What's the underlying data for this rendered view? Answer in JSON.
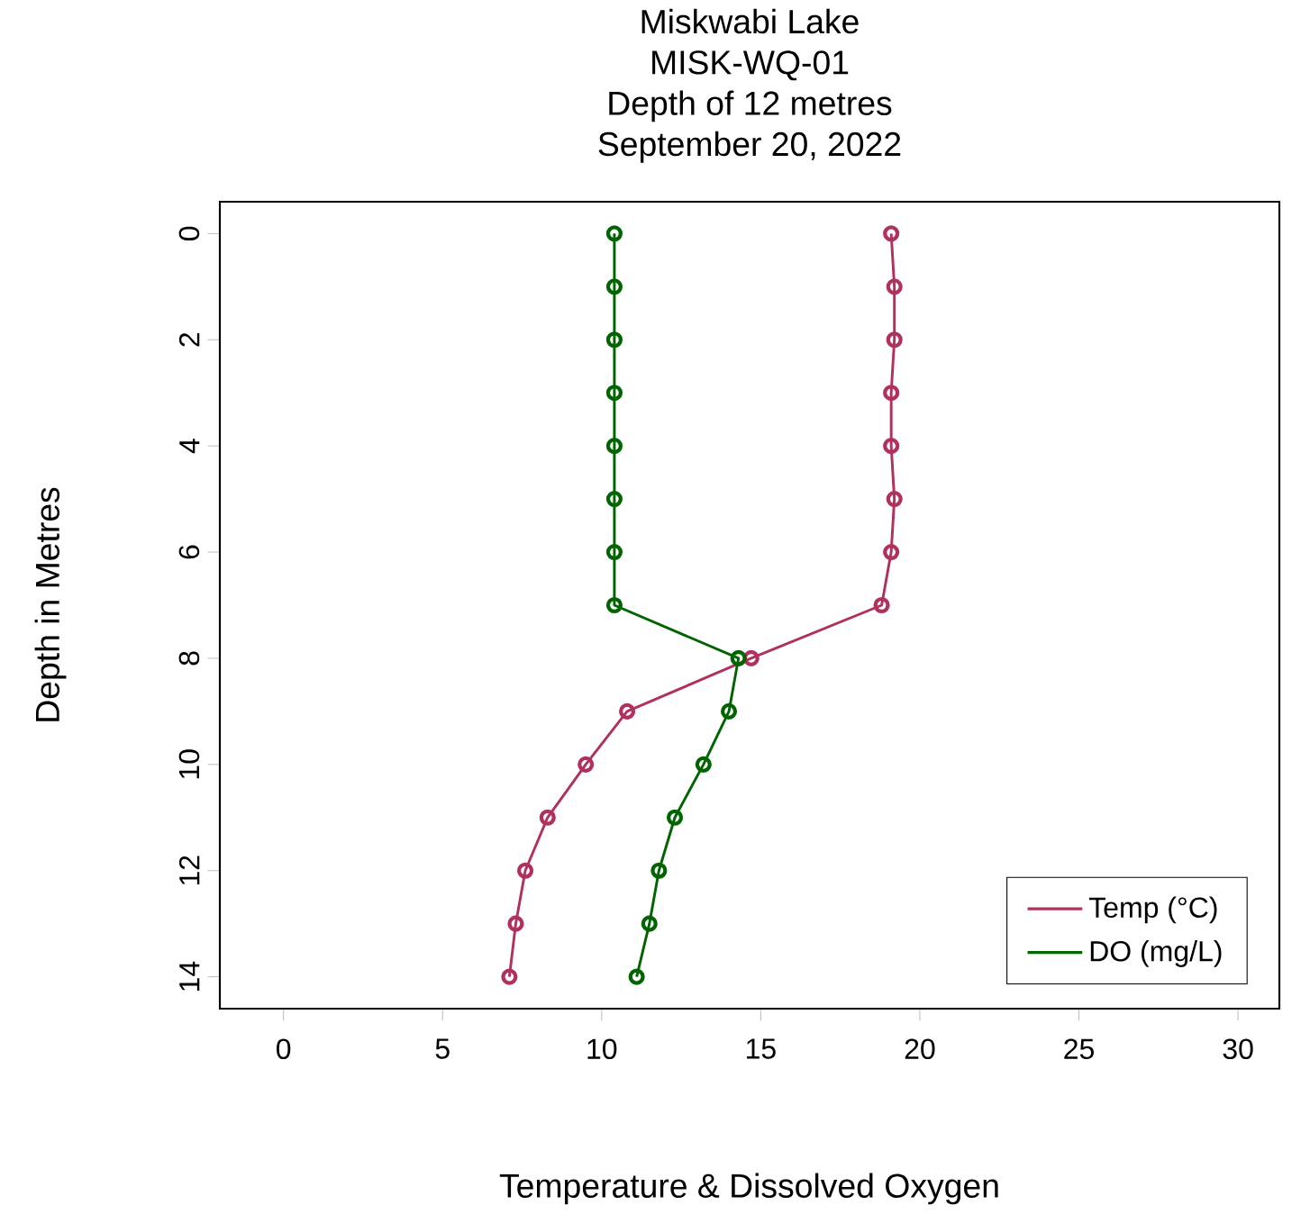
{
  "chart_data": {
    "type": "line",
    "title": "Miskwabi Lake\nMISK-WQ-01\nDepth of 12 metres\nSeptember 20, 2022",
    "xlabel": "Temperature & Dissolved Oxygen",
    "ylabel": "Depth in Metres",
    "series": [
      {
        "name": "Temp (°C)",
        "color": "#b03060",
        "x": [
          19.1,
          19.2,
          19.2,
          19.1,
          19.1,
          19.2,
          19.1,
          18.8,
          14.7,
          10.8,
          9.5,
          8.3,
          7.6,
          7.3,
          7.1
        ],
        "values": [
          0,
          1,
          2,
          3,
          4,
          5,
          6,
          7,
          8,
          9,
          10,
          11,
          12,
          13,
          14
        ]
      },
      {
        "name": "DO (mg/L)",
        "color": "#006400",
        "x": [
          10.4,
          10.4,
          10.4,
          10.4,
          10.4,
          10.4,
          10.4,
          10.4,
          14.3,
          14.0,
          13.2,
          12.3,
          11.8,
          11.5,
          11.1
        ],
        "values": [
          0,
          1,
          2,
          3,
          4,
          5,
          6,
          7,
          8,
          9,
          10,
          11,
          12,
          13,
          14
        ]
      }
    ],
    "xlim": [
      -2,
      31.3
    ],
    "ylim": [
      14.6,
      -0.6
    ],
    "xticks": [
      0,
      5,
      10,
      15,
      20,
      25,
      30
    ],
    "yticks": [
      0,
      2,
      4,
      6,
      8,
      10,
      12,
      14
    ],
    "grid": false,
    "legend": "bottom right",
    "marker": "circle",
    "line_style": "solid"
  }
}
